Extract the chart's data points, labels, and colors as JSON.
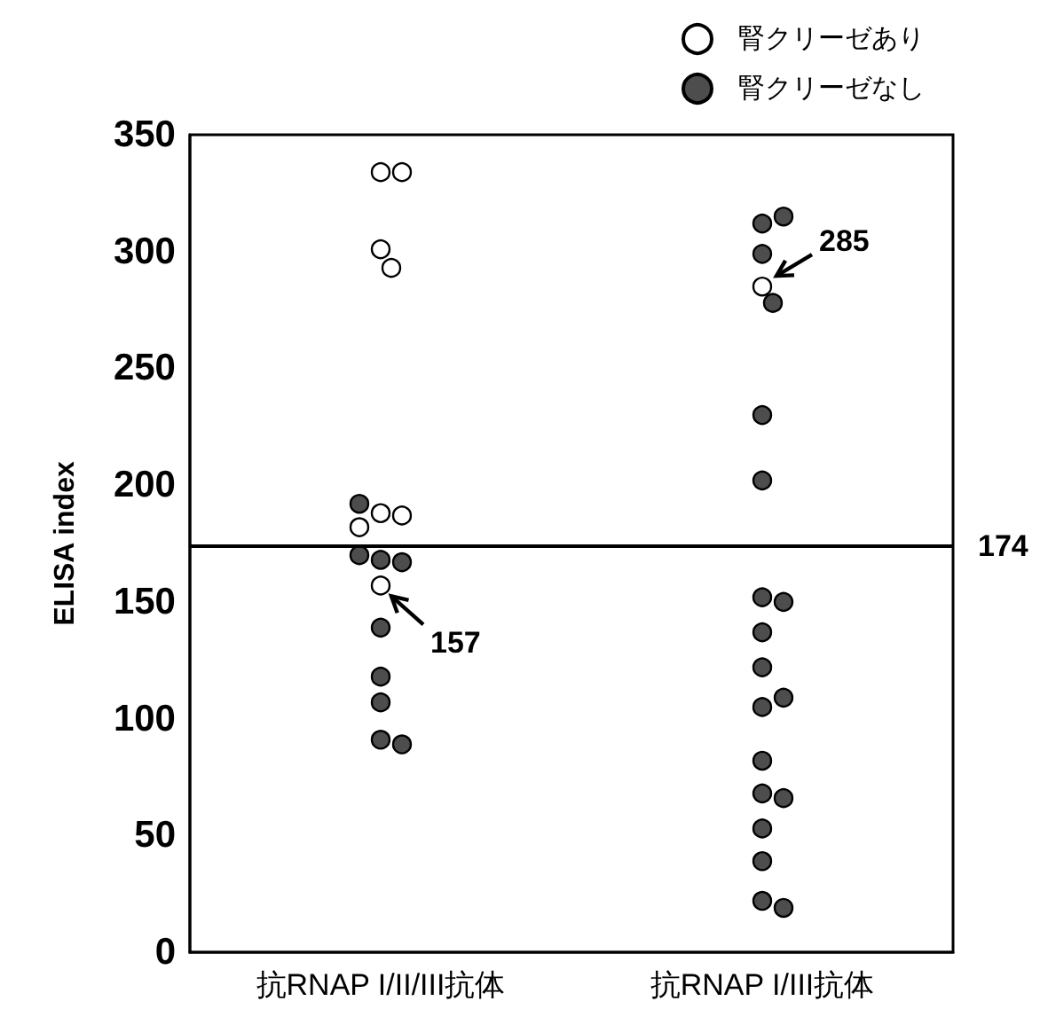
{
  "chart_data": {
    "type": "scatter",
    "ylabel": "ELISA index",
    "categories": [
      "抗RNAP I/II/III抗体",
      "抗RNAP I/III抗体"
    ],
    "ylim": [
      0,
      350
    ],
    "yticks": [
      0,
      50,
      100,
      150,
      200,
      250,
      300,
      350
    ],
    "grid": false,
    "legend": "top right",
    "marker": "circle",
    "series": [
      {
        "name": "腎クリーゼあり",
        "color": "#ffffff",
        "x": [
          "抗RNAP I/II/III抗体",
          "抗RNAP I/II/III抗体",
          "抗RNAP I/II/III抗体",
          "抗RNAP I/II/III抗体",
          "抗RNAP I/II/III抗体",
          "抗RNAP I/II/III抗体",
          "抗RNAP I/II/III抗体",
          "抗RNAP I/II/III抗体",
          "抗RNAP I/III抗体"
        ],
        "values": [
          334,
          334,
          301,
          293,
          188,
          187,
          182,
          157,
          285
        ]
      },
      {
        "name": "腎クリーゼなし",
        "color": "#4d4d4d",
        "x": [
          "抗RNAP I/II/III抗体",
          "抗RNAP I/II/III抗体",
          "抗RNAP I/II/III抗体",
          "抗RNAP I/II/III抗体",
          "抗RNAP I/II/III抗体",
          "抗RNAP I/II/III抗体",
          "抗RNAP I/II/III抗体",
          "抗RNAP I/II/III抗体",
          "抗RNAP I/II/III抗体",
          "抗RNAP I/III抗体",
          "抗RNAP I/III抗体",
          "抗RNAP I/III抗体",
          "抗RNAP I/III抗体",
          "抗RNAP I/III抗体",
          "抗RNAP I/III抗体",
          "抗RNAP I/III抗体",
          "抗RNAP I/III抗体",
          "抗RNAP I/III抗体",
          "抗RNAP I/III抗体",
          "抗RNAP I/III抗体",
          "抗RNAP I/III抗体",
          "抗RNAP I/III抗体",
          "抗RNAP I/III抗体",
          "抗RNAP I/III抗体",
          "抗RNAP I/III抗体",
          "抗RNAP I/III抗体",
          "抗RNAP I/III抗体",
          "抗RNAP I/III抗体"
        ],
        "values": [
          192,
          168,
          167,
          170,
          139,
          118,
          107,
          91,
          89,
          312,
          315,
          299,
          278,
          230,
          202,
          152,
          150,
          137,
          122,
          105,
          109,
          82,
          68,
          66,
          53,
          39,
          22,
          19
        ]
      }
    ],
    "ref_lines": [
      {
        "axis": "y",
        "value": 174,
        "label": "174"
      }
    ],
    "annotations": [
      {
        "text": "157",
        "x": "抗RNAP I/II/III抗体",
        "y": 157
      },
      {
        "text": "285",
        "x": "抗RNAP I/III抗体",
        "y": 285
      }
    ]
  }
}
